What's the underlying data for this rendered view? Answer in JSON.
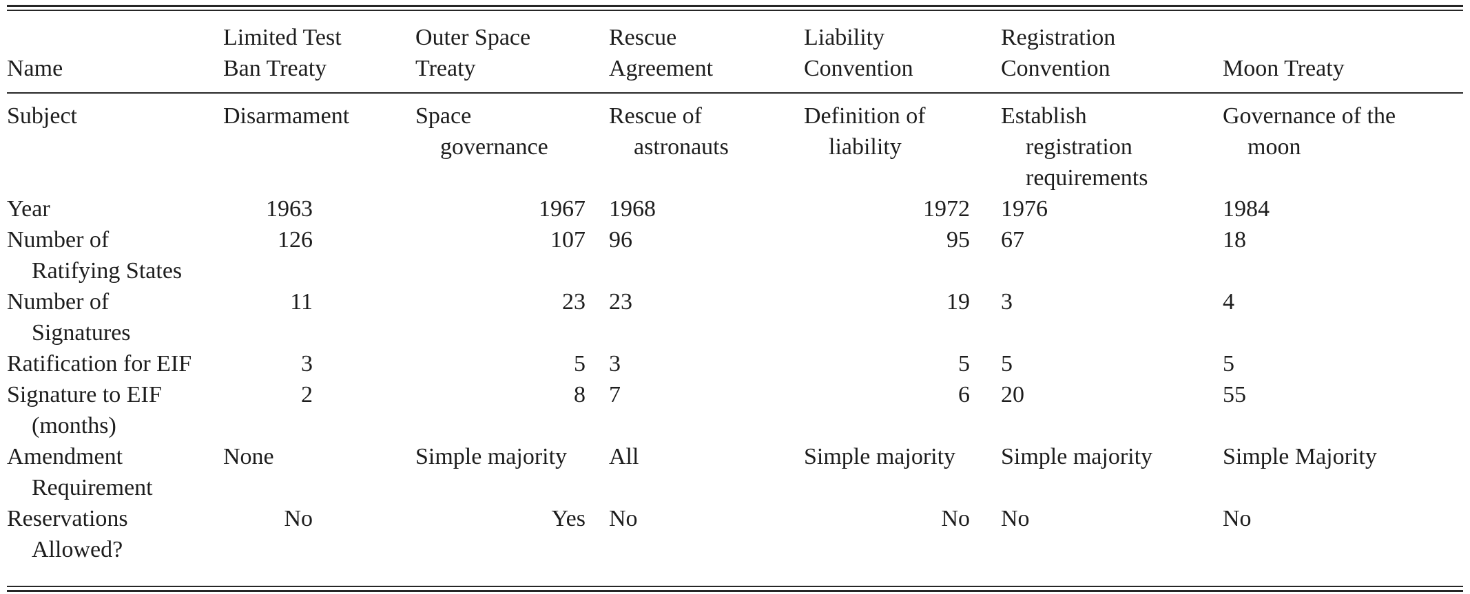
{
  "page": {
    "background": "#ffffff",
    "text_color": "#1d1d1d",
    "rule_color": "#262626"
  },
  "table": {
    "header": {
      "name": "Name",
      "cols": [
        "Limited Test\nBan Treaty",
        "Outer Space\nTreaty",
        "Rescue\nAgreement",
        "Liability\nConvention",
        "Registration\nConvention",
        "Moon Treaty"
      ]
    },
    "rows": [
      {
        "label": "Subject",
        "cells": [
          "Disarmament",
          "Space\ngovernance",
          "Rescue of\nastronauts",
          "Definition of\nliability",
          "Establish\nregistration\nrequirements",
          "Governance of the\nmoon"
        ]
      },
      {
        "label": "Year",
        "cells": [
          "1963",
          "1967",
          "1968",
          "1972",
          "1976",
          "1984"
        ]
      },
      {
        "label": "Number of\nRatifying States",
        "cells": [
          "126",
          "107",
          "96",
          "95",
          "67",
          "18"
        ]
      },
      {
        "label": "Number of\nSignatures",
        "cells": [
          "11",
          "23",
          "23",
          "19",
          "3",
          "4"
        ]
      },
      {
        "label": "Ratification for EIF",
        "cells": [
          "3",
          "5",
          "3",
          "5",
          "5",
          "5"
        ]
      },
      {
        "label": "Signature to EIF\n(months)",
        "cells": [
          "2",
          "8",
          "7",
          "6",
          "20",
          "55"
        ]
      },
      {
        "label": "Amendment\nRequirement",
        "cells": [
          "None",
          "Simple majority",
          "All",
          "Simple majority",
          "Simple majority",
          "Simple Majority"
        ]
      },
      {
        "label": "Reservations\nAllowed?",
        "cells": [
          "No",
          "Yes",
          "No",
          "No",
          "No",
          "No"
        ]
      }
    ]
  }
}
